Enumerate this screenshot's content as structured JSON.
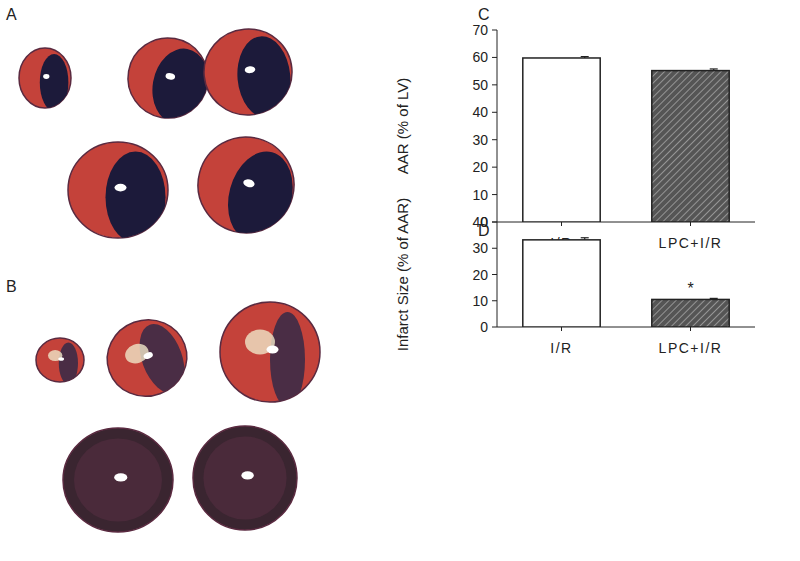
{
  "figure": {
    "panels": [
      "A",
      "B",
      "C",
      "D"
    ]
  },
  "chart_data": [
    {
      "type": "bar",
      "y_label": "AAR (% of LV)",
      "categories": [
        "I/R",
        "LPC+I/R"
      ],
      "values": [
        59.8,
        55.2
      ],
      "errors": [
        0.5,
        0.6
      ],
      "colors": [
        "#ffffff",
        "#555555"
      ],
      "ylim": [
        0,
        70
      ],
      "yticks": [
        0,
        10,
        20,
        30,
        40,
        50,
        60,
        70
      ],
      "grid": false
    },
    {
      "type": "bar",
      "y_label": "Infarct Size (% of AAR)",
      "categories": [
        "I/R",
        "LPC+I/R"
      ],
      "values": [
        33.2,
        10.5
      ],
      "errors": [
        0.8,
        0.4
      ],
      "colors": [
        "#ffffff",
        "#555555"
      ],
      "ylim": [
        0,
        40
      ],
      "yticks": [
        0,
        10,
        20,
        30,
        40
      ],
      "grid": false,
      "annotations": [
        {
          "text": "*",
          "category": "LPC+I/R"
        }
      ]
    }
  ]
}
